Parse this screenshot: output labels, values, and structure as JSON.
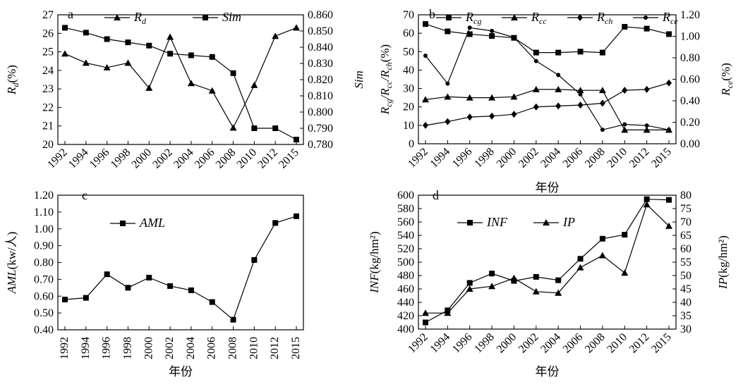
{
  "chart_data": [
    {
      "panel_letter": "a",
      "type": "line",
      "x": [
        "1992",
        "1994",
        "1996",
        "1998",
        "2000",
        "2002",
        "2004",
        "2006",
        "2008",
        "2010",
        "2012",
        "2015"
      ],
      "xlabel": "",
      "series": [
        {
          "name": "R",
          "name_sub": "d",
          "axis": "left",
          "marker": "triangle",
          "values": [
            24.9,
            24.4,
            24.15,
            24.4,
            23.05,
            25.8,
            23.3,
            22.9,
            20.9,
            23.2,
            25.85,
            26.3
          ]
        },
        {
          "name": "Sim",
          "name_sub": "",
          "axis": "right",
          "marker": "square",
          "values": [
            0.852,
            0.849,
            0.845,
            0.843,
            0.841,
            0.836,
            0.835,
            0.834,
            0.824,
            0.79,
            0.79,
            0.783
          ]
        }
      ],
      "yleft": {
        "label": "R",
        "label_sub": "d",
        "label_suffix": "(%)",
        "ylim": [
          20,
          27
        ],
        "ticks": [
          "20",
          "21",
          "22",
          "23",
          "24",
          "25",
          "26",
          "27"
        ]
      },
      "yright": {
        "label": "Sim",
        "label_sub": "",
        "label_suffix": "",
        "ylim": [
          0.78,
          0.86
        ],
        "ticks": [
          "0.780",
          "0.790",
          "0.800",
          "0.810",
          "0.820",
          "0.830",
          "0.840",
          "0.850",
          "0.860"
        ]
      },
      "legend": "top"
    },
    {
      "panel_letter": "b",
      "type": "line",
      "x": [
        "1992",
        "1994",
        "1996",
        "1998",
        "2000",
        "2002",
        "2004",
        "2006",
        "2008",
        "2010",
        "2012",
        "2015"
      ],
      "xlabel": "年份",
      "series": [
        {
          "name": "R",
          "name_sub": "cg",
          "axis": "left",
          "marker": "square",
          "values": [
            65,
            61,
            59.5,
            58.5,
            57.5,
            49.5,
            49.5,
            50,
            49.5,
            63.5,
            62.5,
            59.5
          ]
        },
        {
          "name": "R",
          "name_sub": "cc",
          "axis": "left",
          "marker": "triangle",
          "values": [
            24,
            25.5,
            25,
            25,
            25.5,
            29.5,
            29.5,
            29,
            29,
            7.5,
            7.5,
            7.5
          ]
        },
        {
          "name": "R",
          "name_sub": "ch",
          "axis": "left",
          "marker": "diamond",
          "values": [
            10,
            12,
            14.5,
            15,
            16,
            20,
            20.5,
            21,
            22,
            29,
            29.5,
            33
          ]
        },
        {
          "name": "R",
          "name_sub": "ce",
          "axis": "right",
          "marker": "dot",
          "values": [
            0.82,
            0.56,
            1.08,
            1.05,
            0.99,
            0.77,
            0.64,
            0.46,
            0.13,
            0.18,
            0.17,
            0.13
          ]
        }
      ],
      "yleft": {
        "label": "R",
        "label_parts": [
          [
            "R",
            "cg"
          ],
          [
            "/R",
            "cc"
          ],
          [
            "/R",
            "ch"
          ]
        ],
        "label_suffix": "(%)",
        "ylim": [
          0,
          70
        ],
        "ticks": [
          "0",
          "10",
          "20",
          "30",
          "40",
          "50",
          "60",
          "70"
        ]
      },
      "yright": {
        "label": "R",
        "label_sub": "ce",
        "label_suffix": "(%)",
        "ylim": [
          0,
          1.2
        ],
        "ticks": [
          "0.00",
          "0.20",
          "0.40",
          "0.60",
          "0.80",
          "1.00",
          "1.20"
        ]
      },
      "legend": "top"
    },
    {
      "panel_letter": "c",
      "type": "line",
      "x": [
        "1992",
        "1994",
        "1996",
        "1998",
        "2000",
        "2002",
        "2004",
        "2006",
        "2008",
        "2010",
        "2012",
        "2015"
      ],
      "xlabel": "年份",
      "series": [
        {
          "name": "AML",
          "name_sub": "",
          "axis": "left",
          "marker": "square",
          "values": [
            0.58,
            0.59,
            0.73,
            0.65,
            0.71,
            0.66,
            0.635,
            0.565,
            0.46,
            0.815,
            1.035,
            1.075
          ]
        }
      ],
      "yleft": {
        "label": "AML",
        "label_sub": "",
        "label_suffix": "(kw/人)",
        "ylim": [
          0.4,
          1.2
        ],
        "ticks": [
          "0.40",
          "0.50",
          "0.60",
          "0.70",
          "0.80",
          "0.90",
          "1.00",
          "1.10",
          "1.20"
        ]
      },
      "legend": "top-center"
    },
    {
      "panel_letter": "d",
      "type": "line",
      "x": [
        "1992",
        "1994",
        "1996",
        "1998",
        "2000",
        "2002",
        "2004",
        "2006",
        "2008",
        "2010",
        "2012",
        "2015"
      ],
      "xlabel": "年份",
      "series": [
        {
          "name": "INF",
          "name_sub": "",
          "axis": "left",
          "marker": "square",
          "values": [
            410,
            428,
            469,
            483,
            472,
            478,
            473,
            505,
            535,
            541,
            594,
            593
          ]
        },
        {
          "name": "IP",
          "name_sub": "",
          "axis": "right",
          "marker": "triangle",
          "values": [
            36,
            36,
            45,
            46,
            49,
            44,
            43.5,
            53,
            57.5,
            51,
            76.5,
            68.5
          ]
        }
      ],
      "yleft": {
        "label": "INF",
        "label_sub": "",
        "label_suffix": "(kg/hm²)",
        "ylim": [
          400,
          600
        ],
        "ticks": [
          "400",
          "420",
          "440",
          "460",
          "480",
          "500",
          "520",
          "540",
          "560",
          "580",
          "600"
        ]
      },
      "yright": {
        "label": "IP",
        "label_sub": "",
        "label_suffix": "(kg/hm²)",
        "ylim": [
          30,
          80
        ],
        "ticks": [
          "30",
          "35",
          "40",
          "45",
          "50",
          "55",
          "60",
          "65",
          "70",
          "75",
          "80"
        ]
      },
      "legend": "top-center"
    }
  ]
}
